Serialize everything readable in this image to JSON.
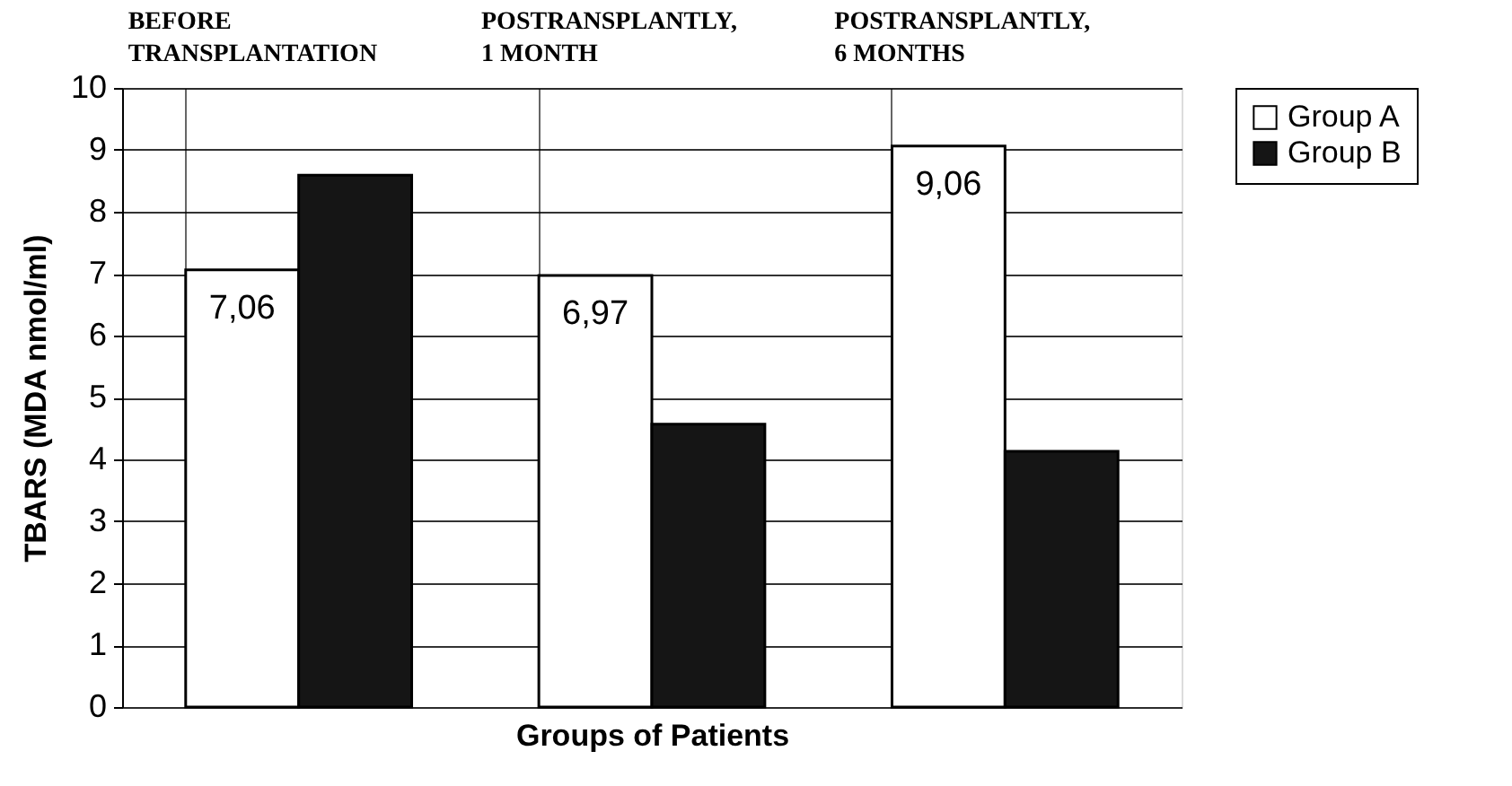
{
  "chart_data": {
    "type": "bar",
    "xlabel": "Groups of Patients",
    "ylabel": "TBARS (MDA nmol/ml)",
    "categories": [
      "BEFORE TRANSPLANTATION",
      "POSTRANSPLANTLY, 1 MONTH",
      "POSTRANSPLANTLY, 6 MONTHS"
    ],
    "series": [
      {
        "name": "Group A",
        "color": "#ffffff",
        "values": [
          7.06,
          6.97,
          9.06
        ],
        "value_labels": [
          "7,06",
          "6,97",
          "9,06"
        ]
      },
      {
        "name": "Group B",
        "color": "#151515",
        "values": [
          8.59,
          4.57,
          4.13
        ]
      }
    ],
    "ylim": [
      0,
      10
    ],
    "yticks": [
      0,
      1,
      2,
      3,
      4,
      5,
      6,
      7,
      8,
      9,
      10
    ],
    "grid": true,
    "legend": "right"
  }
}
